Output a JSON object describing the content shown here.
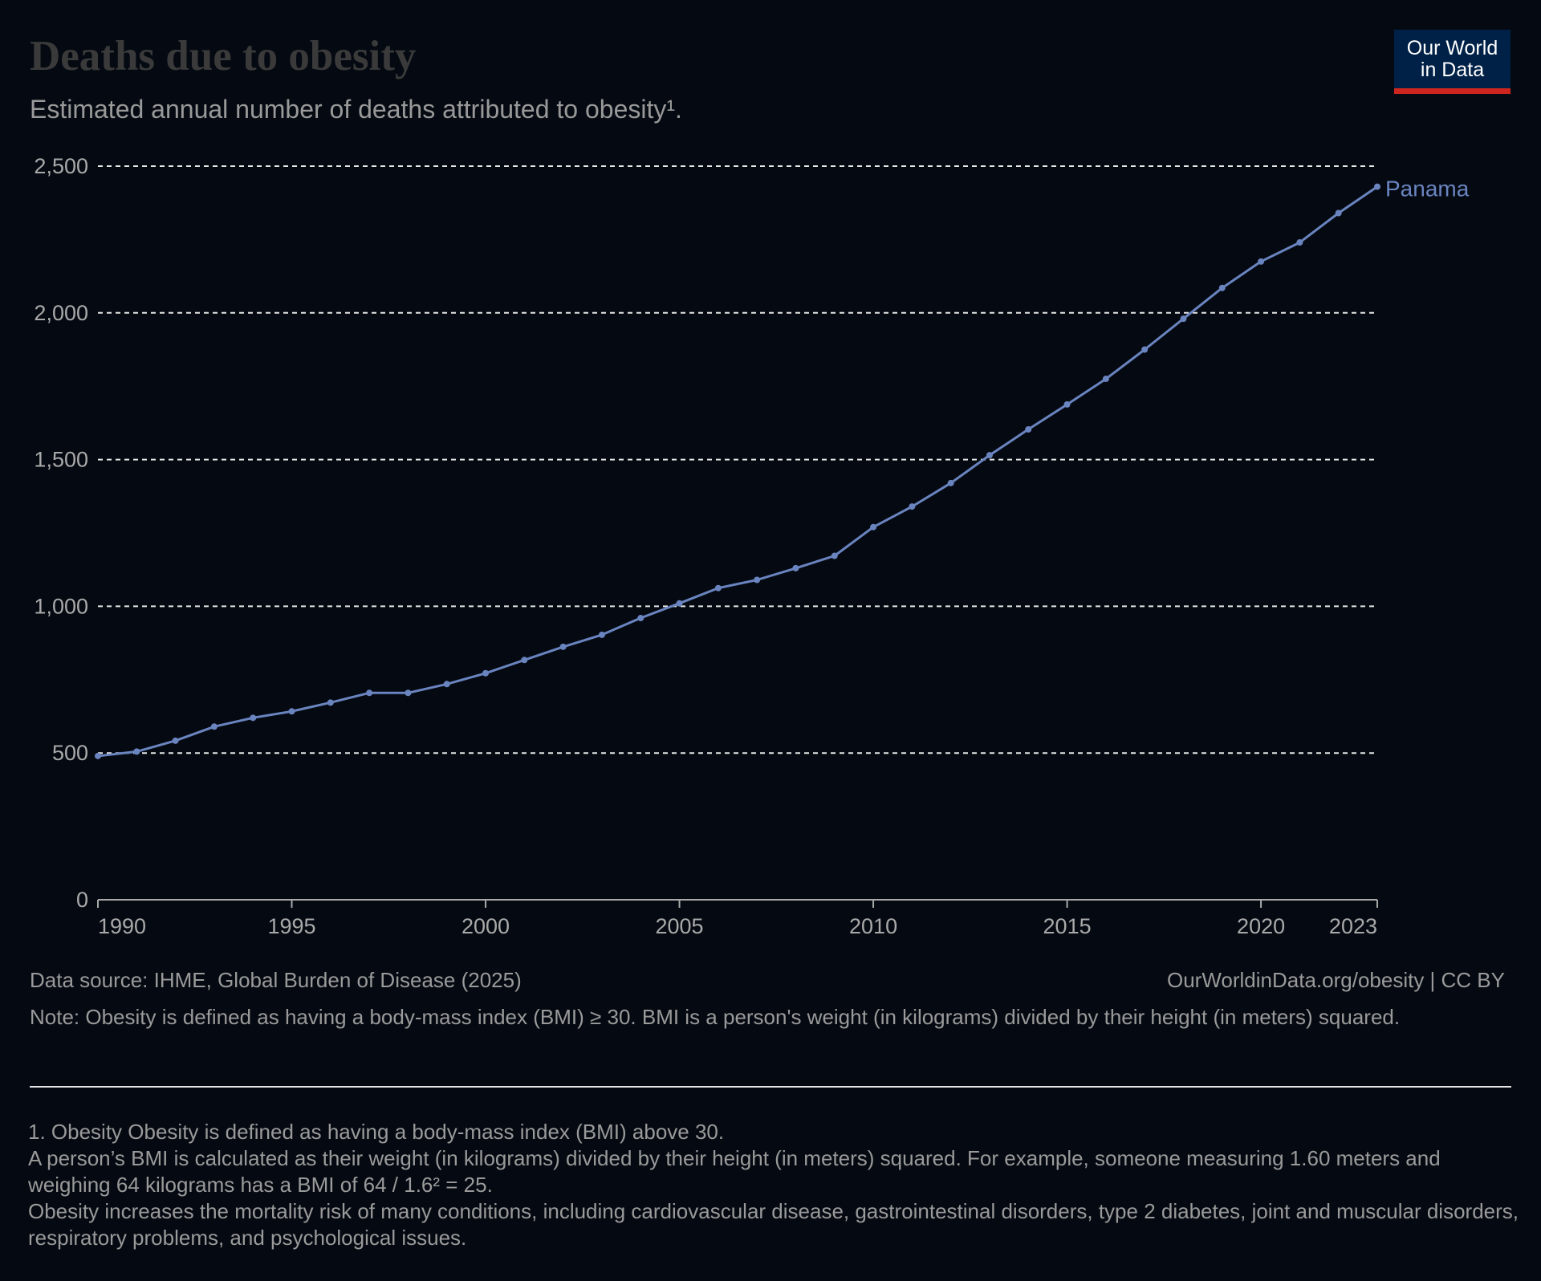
{
  "title": "Deaths due to obesity",
  "subtitle": "Estimated annual number of deaths attributed to obesity¹.",
  "logo": {
    "line1": "Our World",
    "line2": "in Data"
  },
  "colors": {
    "background": "#050a12",
    "series": "#6a84c0",
    "grid": "#e6e6e6",
    "axis": "#a9a9a9"
  },
  "footer": {
    "source": "Data source: IHME, Global Burden of Disease (2025)",
    "license": "OurWorldinData.org/obesity | CC BY",
    "note": "Note: Obesity is defined as having a body-mass index (BMI) ≥ 30. BMI is a person's weight (in kilograms) divided by their height (in meters) squared.",
    "footnote1": "1. Obesity Obesity is defined as having a body-mass index (BMI) above 30.",
    "footnote2": "A person’s BMI is calculated as their weight (in kilograms) divided by their height (in meters) squared. For example, someone measuring 1.60 meters and weighing 64 kilograms has a BMI of 64 / 1.6² = 25.",
    "footnote3": "Obesity increases the mortality risk of many conditions, including cardiovascular disease, gastrointestinal disorders, type 2 diabetes, joint and muscular disorders, respiratory problems, and psychological issues."
  },
  "chart_data": {
    "type": "line",
    "title": "Deaths due to obesity",
    "xlabel": "",
    "ylabel": "",
    "xlim": [
      1990,
      2023
    ],
    "ylim": [
      0,
      2500
    ],
    "x_ticks": [
      1990,
      1995,
      2000,
      2005,
      2010,
      2015,
      2020,
      2023
    ],
    "y_ticks": [
      0,
      500,
      1000,
      1500,
      2000,
      2500
    ],
    "y_tick_labels": [
      "0",
      "500",
      "1,000",
      "1,500",
      "2,000",
      "2,500"
    ],
    "grid": "horizontal dashed",
    "legend": "end-of-line label",
    "x": [
      1990,
      1991,
      1992,
      1993,
      1994,
      1995,
      1996,
      1997,
      1998,
      1999,
      2000,
      2001,
      2002,
      2003,
      2004,
      2005,
      2006,
      2007,
      2008,
      2009,
      2010,
      2011,
      2012,
      2013,
      2014,
      2015,
      2016,
      2017,
      2018,
      2019,
      2020,
      2021,
      2022,
      2023
    ],
    "series": [
      {
        "name": "Panama",
        "values": [
          490,
          505,
          542,
          590,
          620,
          642,
          672,
          705,
          705,
          735,
          772,
          817,
          862,
          903,
          960,
          1010,
          1062,
          1090,
          1130,
          1172,
          1270,
          1340,
          1420,
          1515,
          1603,
          1688,
          1775,
          1875,
          1980,
          2085,
          2175,
          2240,
          2340,
          2430
        ]
      }
    ]
  }
}
